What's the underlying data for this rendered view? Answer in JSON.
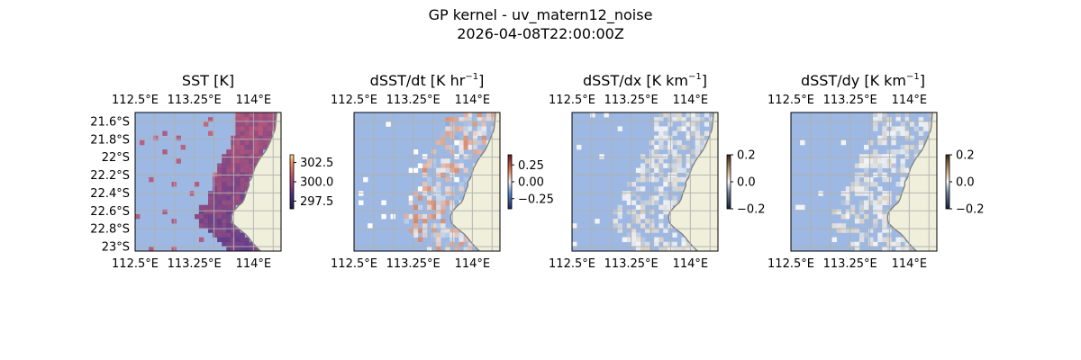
{
  "figure": {
    "title": "GP kernel - uv_matern12_noise",
    "subtitle": "2026-04-08T22:00:00Z"
  },
  "chart_data": [
    {
      "type": "heatmap",
      "title": "SST [K]",
      "x_ticks": [
        "112.5°E",
        "113.25°E",
        "114°E"
      ],
      "x_tick_values": [
        112.5,
        113.25,
        114.0
      ],
      "y_ticks": [
        "21.6°S",
        "21.8°S",
        "22°S",
        "22.2°S",
        "22.4°S",
        "22.6°S",
        "22.8°S",
        "23°S"
      ],
      "y_tick_values": [
        -21.6,
        -21.8,
        -22.0,
        -22.2,
        -22.4,
        -22.6,
        -22.8,
        -23.0
      ],
      "xlim": [
        112.5,
        114.35
      ],
      "ylim": [
        -23.05,
        -21.5
      ],
      "colorbar": {
        "ticks": [
          "302.5",
          "300.0",
          "297.5"
        ],
        "tick_values": [
          302.5,
          300.0,
          297.5
        ],
        "range": [
          296.5,
          303.5
        ],
        "cmap": "thermal"
      },
      "gridlines": true,
      "show_left_labels": true,
      "show_top_labels": true
    },
    {
      "type": "heatmap",
      "title": "dSST/dt [K hr^-1]",
      "title_main": "dSST/dt [K hr",
      "title_sup": "−1",
      "title_end": "]",
      "x_ticks": [
        "112.5°E",
        "113.25°E",
        "114°E"
      ],
      "x_tick_values": [
        112.5,
        113.25,
        114.0
      ],
      "xlim": [
        112.5,
        114.35
      ],
      "ylim": [
        -23.05,
        -21.5
      ],
      "colorbar": {
        "ticks": [
          "0.25",
          "0.00",
          "−0.25"
        ],
        "tick_values": [
          0.25,
          0.0,
          -0.25
        ],
        "range": [
          -0.4,
          0.4
        ],
        "cmap": "balance"
      },
      "gridlines": true,
      "show_left_labels": false,
      "show_top_labels": true
    },
    {
      "type": "heatmap",
      "title": "dSST/dx [K km^-1]",
      "title_main": "dSST/dx [K km",
      "title_sup": "−1",
      "title_end": "]",
      "x_ticks": [
        "112.5°E",
        "113.25°E",
        "114°E"
      ],
      "x_tick_values": [
        112.5,
        113.25,
        114.0
      ],
      "xlim": [
        112.5,
        114.35
      ],
      "ylim": [
        -23.05,
        -21.5
      ],
      "colorbar": {
        "ticks": [
          "0.2",
          "0.0",
          "−0.2"
        ],
        "tick_values": [
          0.2,
          0.0,
          -0.2
        ],
        "range": [
          -0.2,
          0.2
        ],
        "cmap": "diff"
      },
      "gridlines": true,
      "show_left_labels": false,
      "show_top_labels": true
    },
    {
      "type": "heatmap",
      "title": "dSST/dy [K km^-1]",
      "title_main": "dSST/dy [K km",
      "title_sup": "−1",
      "title_end": "]",
      "x_ticks": [
        "112.5°E",
        "113.25°E",
        "114°E"
      ],
      "x_tick_values": [
        112.5,
        113.25,
        114.0
      ],
      "xlim": [
        112.5,
        114.35
      ],
      "ylim": [
        -23.05,
        -21.5
      ],
      "colorbar": {
        "ticks": [
          "0.2",
          "0.0",
          "−0.2"
        ],
        "tick_values": [
          0.2,
          0.0,
          -0.2
        ],
        "range": [
          -0.2,
          0.2
        ],
        "cmap": "diff"
      },
      "gridlines": true,
      "show_left_labels": false,
      "show_top_labels": true
    }
  ],
  "colors": {
    "ocean": "#9db9e3",
    "land": "#efefdb",
    "coast": "#7f7f7f",
    "grid": "#b0b0b0"
  }
}
